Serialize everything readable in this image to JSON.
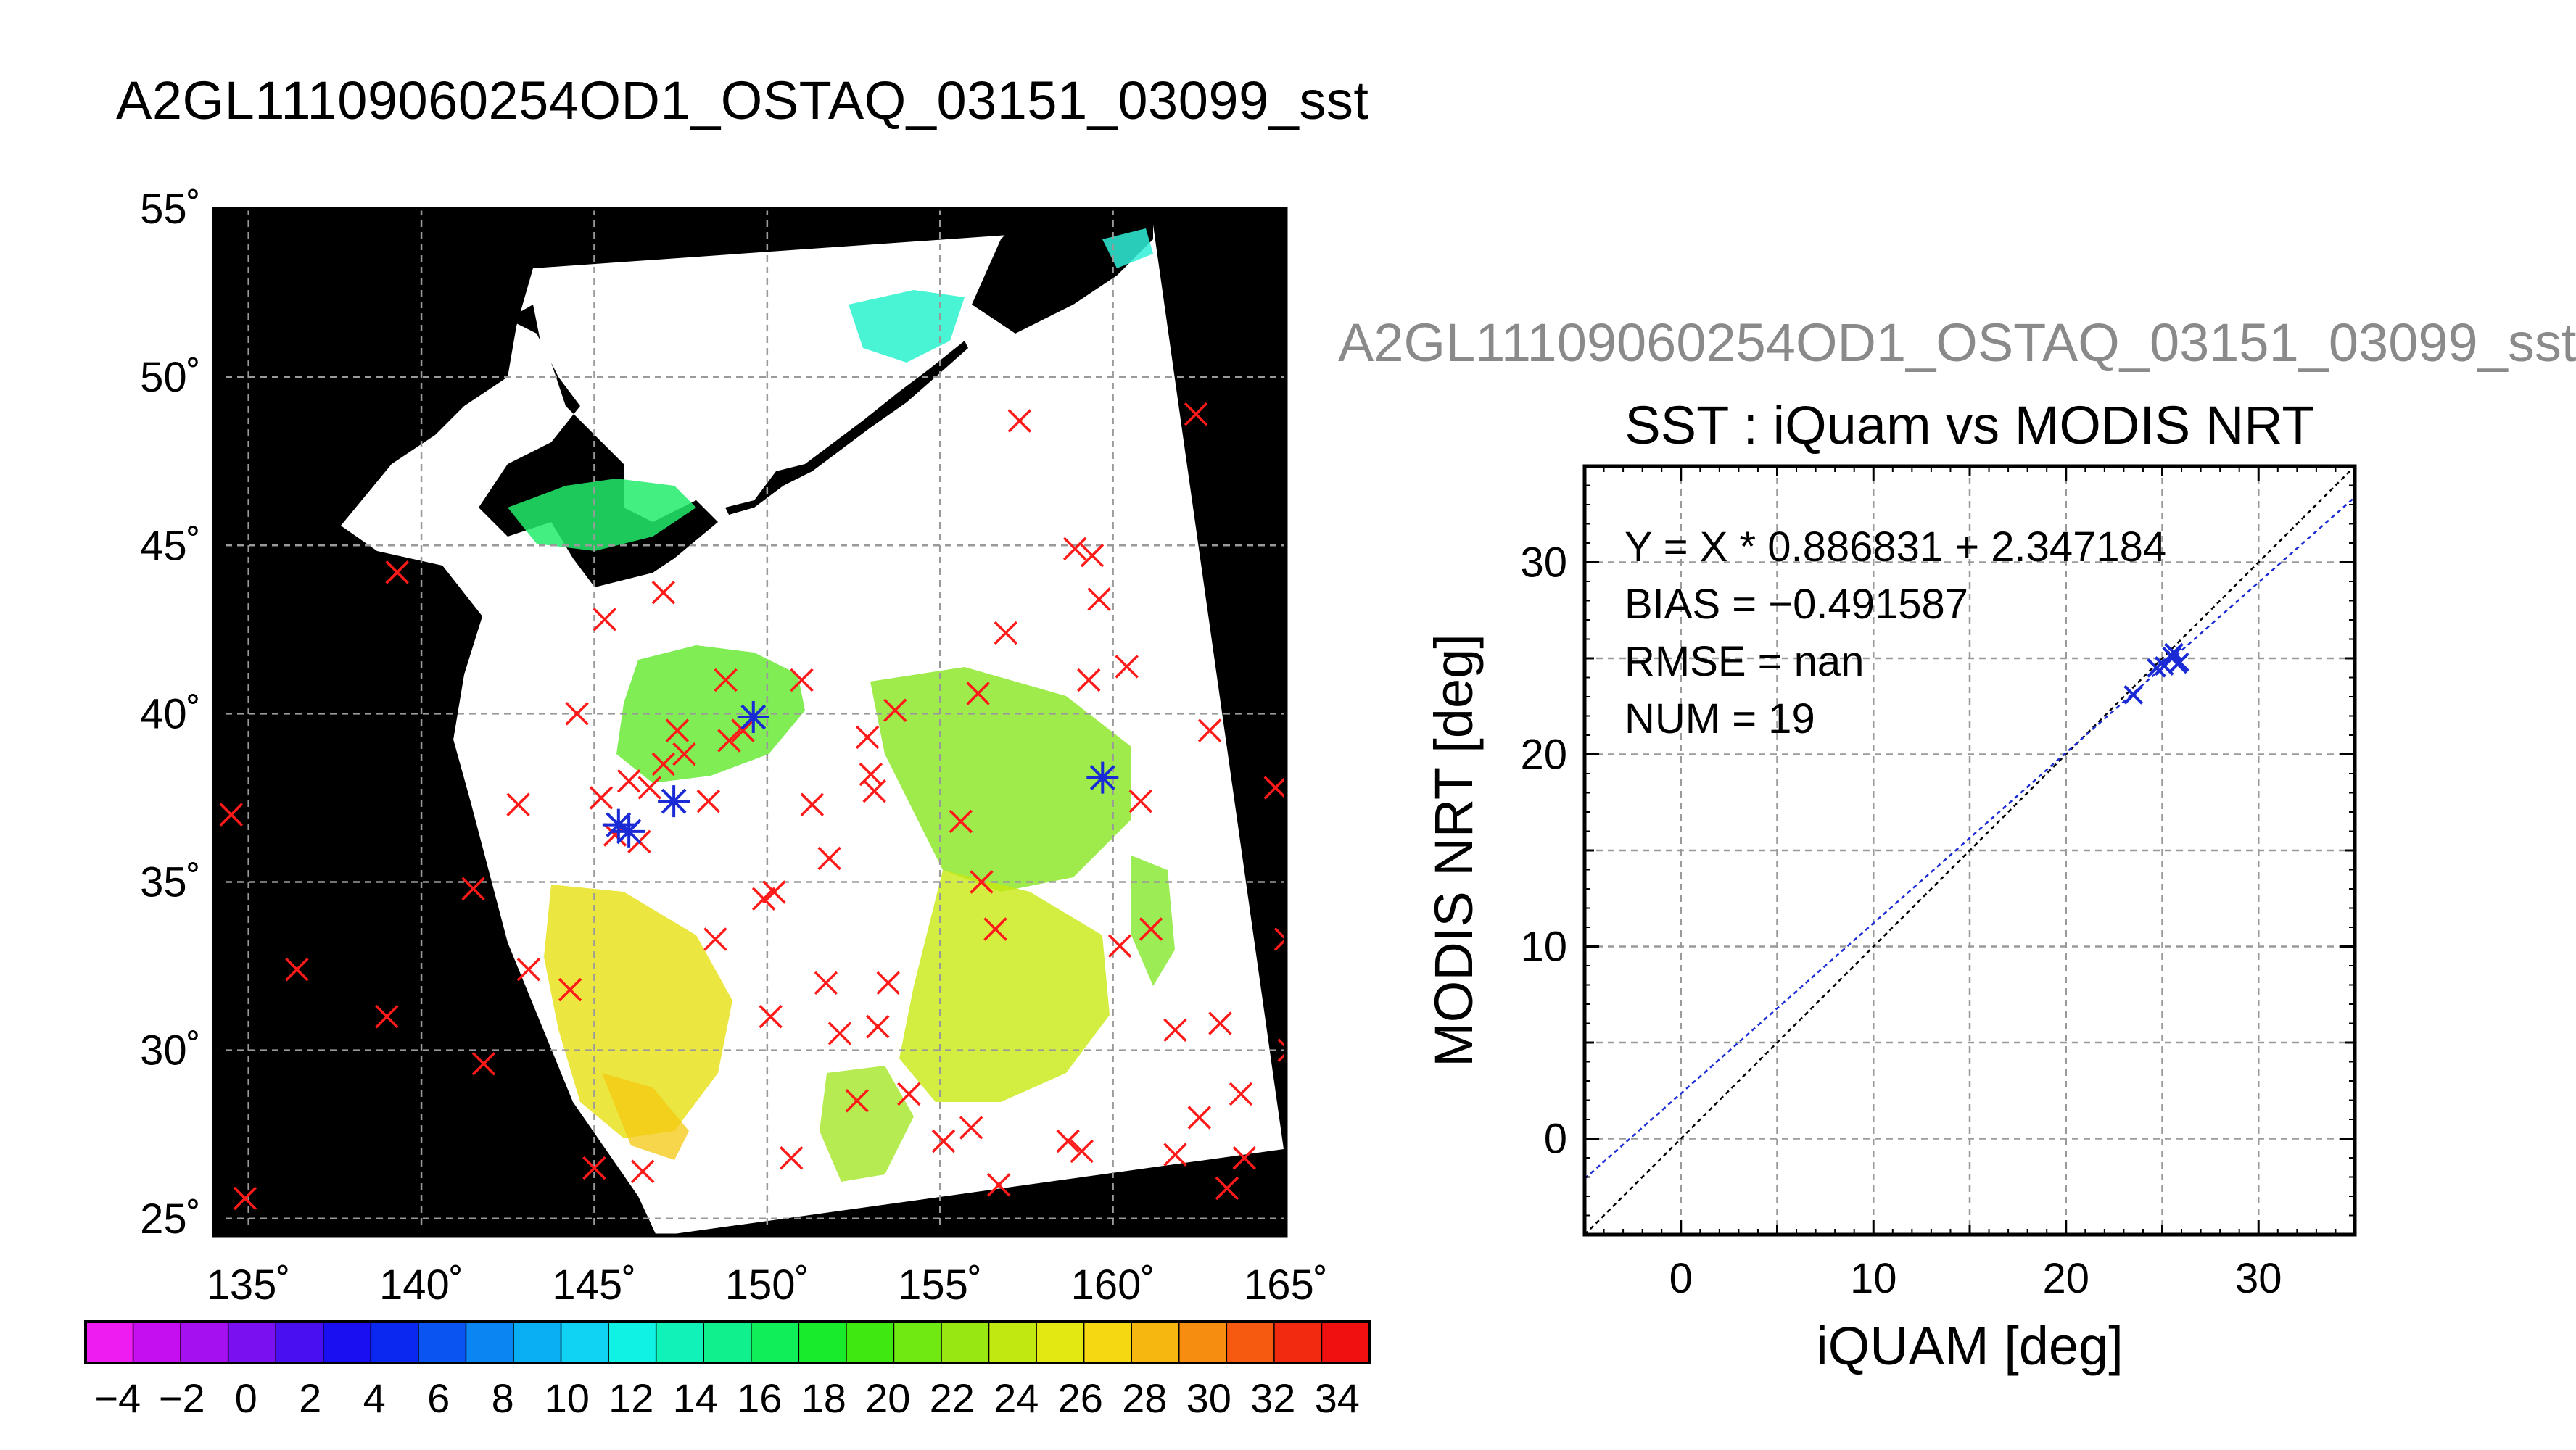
{
  "main_title": "A2GL11109060254OD1_OSTAQ_03151_03099_sst",
  "scatter_file_title": "A2GL11109060254OD1_OSTAQ_03151_03099_sst",
  "colors": {
    "land": "#000000",
    "ocean_cloud": "#ffffff",
    "grid": "#9a9a9a",
    "match_marker": "#ff1a1a",
    "used_marker": "#1a2bd6",
    "fit_line": "#1a2bd6",
    "identity_line": "#000000"
  },
  "chart_data": [
    {
      "type": "map",
      "title": "",
      "lon_range": [
        134,
        165
      ],
      "lat_range": [
        24.5,
        55
      ],
      "lon_tick_labels": [
        "135˚",
        "140˚",
        "145˚",
        "150˚",
        "155˚",
        "160˚",
        "165˚"
      ],
      "lat_tick_labels": [
        "25˚",
        "30˚",
        "35˚",
        "40˚",
        "45˚",
        "50˚",
        "55˚"
      ],
      "lon_ticks": [
        135,
        140,
        145,
        150,
        155,
        160,
        165
      ],
      "lat_ticks": [
        25,
        30,
        35,
        40,
        45,
        50,
        55
      ],
      "grid": true,
      "matchup_points_red": [
        [
          134.5,
          37.0
        ],
        [
          134.9,
          25.6
        ],
        [
          136.4,
          32.4
        ],
        [
          139.0,
          31.0
        ],
        [
          139.3,
          44.2
        ],
        [
          141.5,
          34.8
        ],
        [
          141.8,
          29.6
        ],
        [
          142.8,
          37.3
        ],
        [
          143.1,
          32.4
        ],
        [
          144.3,
          31.8
        ],
        [
          144.5,
          40.0
        ],
        [
          145.0,
          26.5
        ],
        [
          145.2,
          37.5
        ],
        [
          145.3,
          42.8
        ],
        [
          145.6,
          36.4
        ],
        [
          146.0,
          38.0
        ],
        [
          146.3,
          36.2
        ],
        [
          146.4,
          26.4
        ],
        [
          146.6,
          37.8
        ],
        [
          147.0,
          38.5
        ],
        [
          147.0,
          43.6
        ],
        [
          147.4,
          39.5
        ],
        [
          147.6,
          38.8
        ],
        [
          148.3,
          37.4
        ],
        [
          148.5,
          33.3
        ],
        [
          148.8,
          41.0
        ],
        [
          148.9,
          39.2
        ],
        [
          149.3,
          39.5
        ],
        [
          149.9,
          34.5
        ],
        [
          150.1,
          31.0
        ],
        [
          150.2,
          34.7
        ],
        [
          150.7,
          26.8
        ],
        [
          151.0,
          41.0
        ],
        [
          151.3,
          37.3
        ],
        [
          151.7,
          32.0
        ],
        [
          151.8,
          35.7
        ],
        [
          152.1,
          30.5
        ],
        [
          152.6,
          28.5
        ],
        [
          152.9,
          39.3
        ],
        [
          153.0,
          38.2
        ],
        [
          153.1,
          37.7
        ],
        [
          153.2,
          30.7
        ],
        [
          153.5,
          32.0
        ],
        [
          153.7,
          40.1
        ],
        [
          154.1,
          28.7
        ],
        [
          155.1,
          27.3
        ],
        [
          155.6,
          36.8
        ],
        [
          155.9,
          27.7
        ],
        [
          156.1,
          40.6
        ],
        [
          156.2,
          35.0
        ],
        [
          156.6,
          33.6
        ],
        [
          156.7,
          26.0
        ],
        [
          156.9,
          42.4
        ],
        [
          157.3,
          48.7
        ],
        [
          158.7,
          27.3
        ],
        [
          158.9,
          44.9
        ],
        [
          159.1,
          27.0
        ],
        [
          159.3,
          41.0
        ],
        [
          159.4,
          44.7
        ],
        [
          159.6,
          43.4
        ],
        [
          160.2,
          33.1
        ],
        [
          160.4,
          41.4
        ],
        [
          160.8,
          37.4
        ],
        [
          161.1,
          33.6
        ],
        [
          161.8,
          30.6
        ],
        [
          161.8,
          26.9
        ],
        [
          162.4,
          48.9
        ],
        [
          162.5,
          28.0
        ],
        [
          162.8,
          39.5
        ],
        [
          163.1,
          30.8
        ],
        [
          163.3,
          25.9
        ],
        [
          163.7,
          28.7
        ],
        [
          163.8,
          26.8
        ],
        [
          164.7,
          37.8
        ],
        [
          165.0,
          33.3
        ],
        [
          165.1,
          30.0
        ]
      ],
      "matchup_points_blue": [
        [
          145.7,
          36.7
        ],
        [
          146.0,
          36.5
        ],
        [
          147.3,
          37.4
        ],
        [
          149.6,
          39.9
        ],
        [
          159.7,
          38.1
        ]
      ]
    },
    {
      "type": "colorbar",
      "title": "",
      "tick_labels": [
        "−4",
        "−2",
        "0",
        "2",
        "4",
        "6",
        "8",
        "10",
        "12",
        "14",
        "16",
        "18",
        "20",
        "22",
        "24",
        "26",
        "28",
        "30",
        "32",
        "34"
      ],
      "range": [
        -5,
        35
      ],
      "colors": [
        "#ee1cf0",
        "#c60ff0",
        "#a510f0",
        "#7a10f0",
        "#4a0ff0",
        "#1a0ff0",
        "#0a28f0",
        "#0a55f2",
        "#0a85f2",
        "#0aaef2",
        "#10d2f2",
        "#10f2e4",
        "#10f2b8",
        "#10f08c",
        "#10ee5a",
        "#18ea2c",
        "#40e812",
        "#70e812",
        "#98e612",
        "#c2e812",
        "#e4e812",
        "#f6d812",
        "#f6b810",
        "#f68c10",
        "#f65a10",
        "#f22a10",
        "#f01010"
      ]
    },
    {
      "type": "scatter",
      "title": "SST : iQuam vs MODIS NRT",
      "xlabel": "iQUAM [deg]",
      "ylabel": "MODIS NRT [deg]",
      "xlim": [
        -5,
        35
      ],
      "ylim": [
        -5,
        35
      ],
      "x_ticks": [
        0,
        10,
        20,
        30
      ],
      "y_ticks": [
        0,
        10,
        20,
        30
      ],
      "x_tick_labels": [
        "0",
        "10",
        "20",
        "30"
      ],
      "y_tick_labels": [
        "0",
        "10",
        "20",
        "30"
      ],
      "grid": true,
      "annotations": [
        "Y = X * 0.886831 + 2.347184",
        "BIAS = −0.491587",
        "RMSE = nan",
        "NUM = 19"
      ],
      "fit_slope": 0.886831,
      "fit_intercept": 2.347184,
      "points": [
        {
          "x": 23.5,
          "y": 23.1
        },
        {
          "x": 24.7,
          "y": 24.5
        },
        {
          "x": 25.1,
          "y": 24.6
        },
        {
          "x": 25.5,
          "y": 25.1
        },
        {
          "x": 25.6,
          "y": 25.3
        },
        {
          "x": 25.9,
          "y": 24.8
        },
        {
          "x": 25.8,
          "y": 24.7
        }
      ]
    }
  ]
}
